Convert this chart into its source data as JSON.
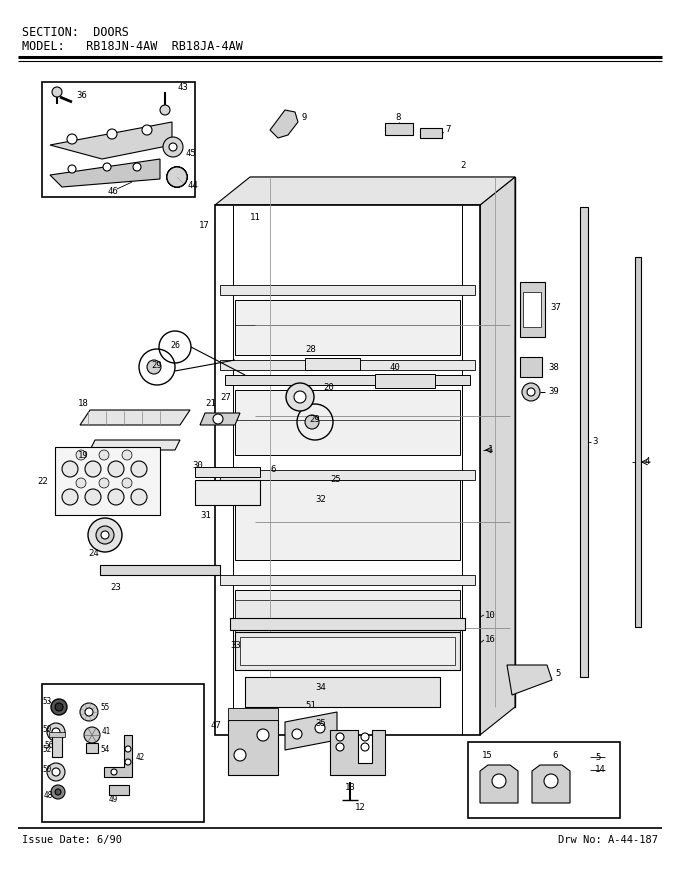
{
  "title_section": "SECTION:  DOORS",
  "title_model": "MODEL:   RB18JN-4AW  RB18JA-4AW",
  "footer_left": "Issue Date: 6/90",
  "footer_right": "Drw No: A-44-187",
  "bg_color": "#ffffff",
  "fig_width": 6.8,
  "fig_height": 8.9,
  "dpi": 100
}
